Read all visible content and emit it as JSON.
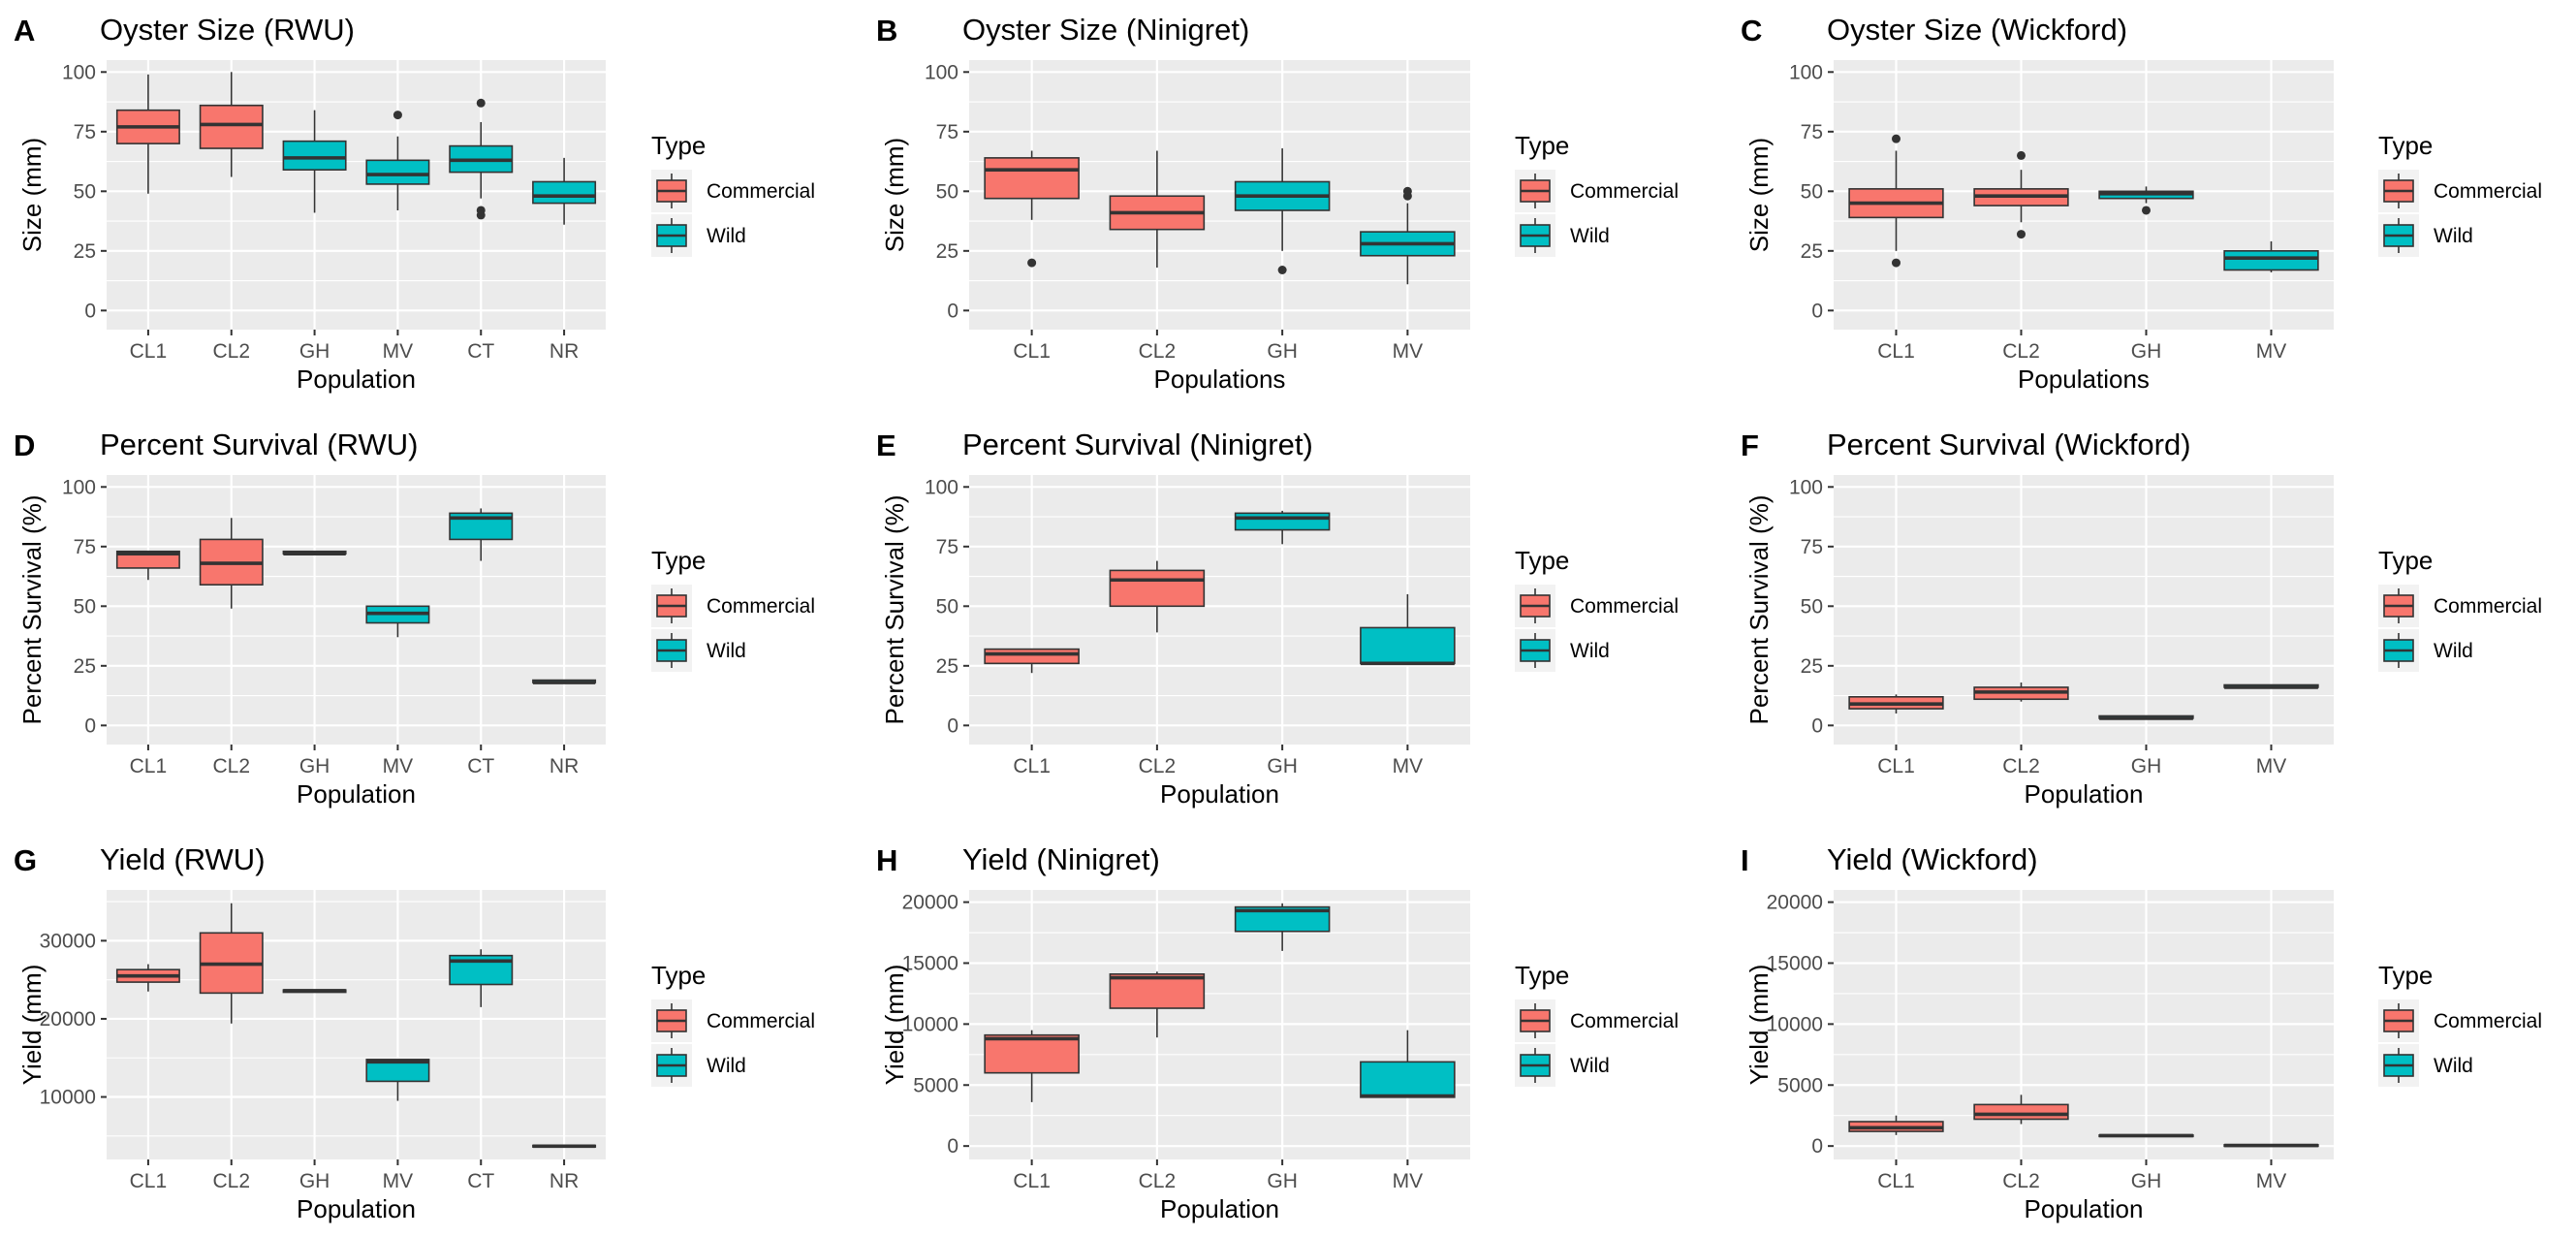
{
  "figure": {
    "legend": {
      "title": "Type",
      "items": [
        {
          "label": "Commercial",
          "color": "#F8766D"
        },
        {
          "label": "Wild",
          "color": "#00BFC4"
        }
      ]
    }
  },
  "chart_data": [
    {
      "panel": "A",
      "title": "Oyster Size (RWU)",
      "type": "box",
      "xlabel": "Population",
      "ylabel": "Size (mm)",
      "ylim": [
        -8,
        105
      ],
      "yticks": [
        0,
        25,
        50,
        75,
        100
      ],
      "categories": [
        "CL1",
        "CL2",
        "GH",
        "MV",
        "CT",
        "NR"
      ],
      "boxes": [
        {
          "x": "CL1",
          "type": "Commercial",
          "q1": 70,
          "median": 77,
          "q3": 84,
          "low": 49,
          "high": 99,
          "outliers": []
        },
        {
          "x": "CL2",
          "type": "Commercial",
          "q1": 68,
          "median": 78,
          "q3": 86,
          "low": 56,
          "high": 100,
          "outliers": []
        },
        {
          "x": "GH",
          "type": "Wild",
          "q1": 59,
          "median": 64,
          "q3": 71,
          "low": 41,
          "high": 84,
          "outliers": []
        },
        {
          "x": "MV",
          "type": "Wild",
          "q1": 53,
          "median": 57,
          "q3": 63,
          "low": 42,
          "high": 73,
          "outliers": [
            82
          ]
        },
        {
          "x": "CT",
          "type": "Wild",
          "q1": 58,
          "median": 63,
          "q3": 69,
          "low": 47,
          "high": 79,
          "outliers": [
            87,
            42,
            40
          ]
        },
        {
          "x": "NR",
          "type": "Wild",
          "q1": 45,
          "median": 48,
          "q3": 54,
          "low": 36,
          "high": 64,
          "outliers": []
        }
      ]
    },
    {
      "panel": "B",
      "title": "Oyster Size (Ninigret)",
      "type": "box",
      "xlabel": "Populations",
      "ylabel": "Size (mm)",
      "ylim": [
        -8,
        105
      ],
      "yticks": [
        0,
        25,
        50,
        75,
        100
      ],
      "categories": [
        "CL1",
        "CL2",
        "GH",
        "MV"
      ],
      "boxes": [
        {
          "x": "CL1",
          "type": "Commercial",
          "q1": 47,
          "median": 59,
          "q3": 64,
          "low": 38,
          "high": 67,
          "outliers": [
            20
          ]
        },
        {
          "x": "CL2",
          "type": "Commercial",
          "q1": 34,
          "median": 41,
          "q3": 48,
          "low": 18,
          "high": 67,
          "outliers": []
        },
        {
          "x": "GH",
          "type": "Wild",
          "q1": 42,
          "median": 48,
          "q3": 54,
          "low": 25,
          "high": 68,
          "outliers": [
            17
          ]
        },
        {
          "x": "MV",
          "type": "Wild",
          "q1": 23,
          "median": 28,
          "q3": 33,
          "low": 11,
          "high": 45,
          "outliers": [
            48,
            50
          ]
        }
      ]
    },
    {
      "panel": "C",
      "title": "Oyster Size (Wickford)",
      "type": "box",
      "xlabel": "Populations",
      "ylabel": "Size (mm)",
      "ylim": [
        -8,
        105
      ],
      "yticks": [
        0,
        25,
        50,
        75,
        100
      ],
      "categories": [
        "CL1",
        "CL2",
        "GH",
        "MV"
      ],
      "boxes": [
        {
          "x": "CL1",
          "type": "Commercial",
          "q1": 39,
          "median": 45,
          "q3": 51,
          "low": 25,
          "high": 67,
          "outliers": [
            72,
            20
          ]
        },
        {
          "x": "CL2",
          "type": "Commercial",
          "q1": 44,
          "median": 48,
          "q3": 51,
          "low": 37,
          "high": 59,
          "outliers": [
            65,
            32
          ]
        },
        {
          "x": "GH",
          "type": "Wild",
          "q1": 47,
          "median": 49,
          "q3": 50,
          "low": 45,
          "high": 52,
          "outliers": [
            42
          ]
        },
        {
          "x": "MV",
          "type": "Wild",
          "q1": 17,
          "median": 22,
          "q3": 25,
          "low": 16,
          "high": 29,
          "outliers": []
        }
      ]
    },
    {
      "panel": "D",
      "title": "Percent Survival (RWU)",
      "type": "box",
      "xlabel": "Population",
      "ylabel": "Percent Survival (%)",
      "ylim": [
        -8,
        105
      ],
      "yticks": [
        0,
        25,
        50,
        75,
        100
      ],
      "categories": [
        "CL1",
        "CL2",
        "GH",
        "MV",
        "CT",
        "NR"
      ],
      "boxes": [
        {
          "x": "CL1",
          "type": "Commercial",
          "q1": 66,
          "median": 72,
          "q3": 73,
          "low": 61,
          "high": 73,
          "outliers": []
        },
        {
          "x": "CL2",
          "type": "Commercial",
          "q1": 59,
          "median": 68,
          "q3": 78,
          "low": 49,
          "high": 87,
          "outliers": []
        },
        {
          "x": "GH",
          "type": "Wild",
          "q1": 72,
          "median": 72,
          "q3": 73,
          "low": 72,
          "high": 73,
          "outliers": []
        },
        {
          "x": "MV",
          "type": "Wild",
          "q1": 43,
          "median": 47,
          "q3": 50,
          "low": 37,
          "high": 50,
          "outliers": []
        },
        {
          "x": "CT",
          "type": "Wild",
          "q1": 78,
          "median": 87,
          "q3": 89,
          "low": 69,
          "high": 91,
          "outliers": []
        },
        {
          "x": "NR",
          "type": "Wild",
          "q1": 18,
          "median": 18,
          "q3": 19,
          "low": 18,
          "high": 19,
          "outliers": []
        }
      ]
    },
    {
      "panel": "E",
      "title": "Percent Survival (Ninigret)",
      "type": "box",
      "xlabel": "Population",
      "ylabel": "Percent Survival (%)",
      "ylim": [
        -8,
        105
      ],
      "yticks": [
        0,
        25,
        50,
        75,
        100
      ],
      "categories": [
        "CL1",
        "CL2",
        "GH",
        "MV"
      ],
      "boxes": [
        {
          "x": "CL1",
          "type": "Commercial",
          "q1": 26,
          "median": 30,
          "q3": 32,
          "low": 22,
          "high": 32,
          "outliers": []
        },
        {
          "x": "CL2",
          "type": "Commercial",
          "q1": 50,
          "median": 61,
          "q3": 65,
          "low": 39,
          "high": 69,
          "outliers": []
        },
        {
          "x": "GH",
          "type": "Wild",
          "q1": 82,
          "median": 87,
          "q3": 89,
          "low": 76,
          "high": 90,
          "outliers": []
        },
        {
          "x": "MV",
          "type": "Wild",
          "q1": 26,
          "median": 26,
          "q3": 41,
          "low": 26,
          "high": 55,
          "outliers": []
        }
      ]
    },
    {
      "panel": "F",
      "title": "Percent Survival (Wickford)",
      "type": "box",
      "xlabel": "Population",
      "ylabel": "Percent Survival (%)",
      "ylim": [
        -8,
        105
      ],
      "yticks": [
        0,
        25,
        50,
        75,
        100
      ],
      "categories": [
        "CL1",
        "CL2",
        "GH",
        "MV"
      ],
      "boxes": [
        {
          "x": "CL1",
          "type": "Commercial",
          "q1": 7,
          "median": 9,
          "q3": 12,
          "low": 5,
          "high": 13,
          "outliers": []
        },
        {
          "x": "CL2",
          "type": "Commercial",
          "q1": 11,
          "median": 14,
          "q3": 16,
          "low": 10,
          "high": 18,
          "outliers": []
        },
        {
          "x": "GH",
          "type": "Wild",
          "q1": 3,
          "median": 3,
          "q3": 4,
          "low": 3,
          "high": 4,
          "outliers": []
        },
        {
          "x": "MV",
          "type": "Wild",
          "q1": 16,
          "median": 16,
          "q3": 17,
          "low": 16,
          "high": 17,
          "outliers": []
        }
      ]
    },
    {
      "panel": "G",
      "title": "Yield (RWU)",
      "type": "box",
      "xlabel": "Population",
      "ylabel": "Yield (mm)",
      "ylim": [
        2000,
        36500
      ],
      "yticks": [
        10000,
        20000,
        30000
      ],
      "categories": [
        "CL1",
        "CL2",
        "GH",
        "MV",
        "CT",
        "NR"
      ],
      "boxes": [
        {
          "x": "CL1",
          "type": "Commercial",
          "q1": 24700,
          "median": 25500,
          "q3": 26300,
          "low": 23500,
          "high": 27000,
          "outliers": []
        },
        {
          "x": "CL2",
          "type": "Commercial",
          "q1": 23300,
          "median": 27000,
          "q3": 31000,
          "low": 19400,
          "high": 34800,
          "outliers": []
        },
        {
          "x": "GH",
          "type": "Wild",
          "q1": 23400,
          "median": 23600,
          "q3": 23700,
          "low": 23400,
          "high": 23700,
          "outliers": []
        },
        {
          "x": "MV",
          "type": "Wild",
          "q1": 12000,
          "median": 14500,
          "q3": 14800,
          "low": 9500,
          "high": 14800,
          "outliers": []
        },
        {
          "x": "CT",
          "type": "Wild",
          "q1": 24400,
          "median": 27400,
          "q3": 28100,
          "low": 21500,
          "high": 28900,
          "outliers": []
        },
        {
          "x": "NR",
          "type": "Wild",
          "q1": 3600,
          "median": 3700,
          "q3": 3800,
          "low": 3600,
          "high": 3800,
          "outliers": []
        }
      ]
    },
    {
      "panel": "H",
      "title": "Yield (Ninigret)",
      "type": "box",
      "xlabel": "Population",
      "ylabel": "Yield (mm)",
      "ylim": [
        -1100,
        21000
      ],
      "yticks": [
        0,
        5000,
        10000,
        15000,
        20000
      ],
      "categories": [
        "CL1",
        "CL2",
        "GH",
        "MV"
      ],
      "boxes": [
        {
          "x": "CL1",
          "type": "Commercial",
          "q1": 6000,
          "median": 8800,
          "q3": 9100,
          "low": 3600,
          "high": 9500,
          "outliers": []
        },
        {
          "x": "CL2",
          "type": "Commercial",
          "q1": 11300,
          "median": 13800,
          "q3": 14100,
          "low": 8900,
          "high": 14300,
          "outliers": []
        },
        {
          "x": "GH",
          "type": "Wild",
          "q1": 17600,
          "median": 19300,
          "q3": 19600,
          "low": 16000,
          "high": 19900,
          "outliers": []
        },
        {
          "x": "MV",
          "type": "Wild",
          "q1": 4000,
          "median": 4100,
          "q3": 6900,
          "low": 4000,
          "high": 9500,
          "outliers": []
        }
      ]
    },
    {
      "panel": "I",
      "title": "Yield (Wickford)",
      "type": "box",
      "xlabel": "Population",
      "ylabel": "Yield (mm)",
      "ylim": [
        -1100,
        21000
      ],
      "yticks": [
        0,
        5000,
        10000,
        15000,
        20000
      ],
      "categories": [
        "CL1",
        "CL2",
        "GH",
        "MV"
      ],
      "boxes": [
        {
          "x": "CL1",
          "type": "Commercial",
          "q1": 1200,
          "median": 1500,
          "q3": 2000,
          "low": 900,
          "high": 2500,
          "outliers": []
        },
        {
          "x": "CL2",
          "type": "Commercial",
          "q1": 2200,
          "median": 2600,
          "q3": 3400,
          "low": 1800,
          "high": 4200,
          "outliers": []
        },
        {
          "x": "GH",
          "type": "Wild",
          "q1": 800,
          "median": 850,
          "q3": 900,
          "low": 800,
          "high": 900,
          "outliers": []
        },
        {
          "x": "MV",
          "type": "Wild",
          "q1": 0,
          "median": 50,
          "q3": 100,
          "low": 0,
          "high": 100,
          "outliers": []
        }
      ]
    }
  ]
}
